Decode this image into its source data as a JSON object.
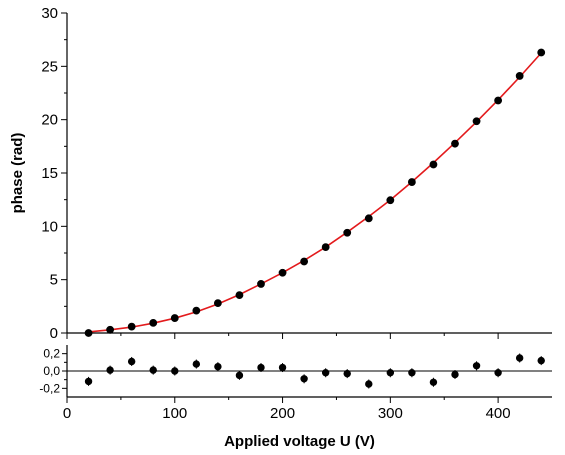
{
  "chart_data": [
    {
      "type": "scatter",
      "panel": "main",
      "title": "",
      "xlabel": "",
      "ylabel": "phase (rad)",
      "xlim": [
        0,
        450
      ],
      "ylim": [
        0,
        30
      ],
      "yticks": [
        0,
        5,
        10,
        15,
        20,
        25,
        30
      ],
      "ytick_labels": [
        "0",
        "5",
        "10",
        "15",
        "20",
        "25",
        "30"
      ],
      "series": [
        {
          "kind": "points",
          "color": "#000000",
          "x": [
            20,
            40,
            60,
            80,
            100,
            120,
            140,
            160,
            180,
            200,
            220,
            240,
            260,
            280,
            300,
            320,
            340,
            360,
            380,
            400,
            420,
            440
          ],
          "y": [
            0.0,
            0.3,
            0.6,
            0.95,
            1.4,
            2.1,
            2.8,
            3.55,
            4.6,
            5.65,
            6.7,
            8.05,
            9.4,
            10.75,
            12.45,
            14.15,
            15.8,
            17.75,
            19.85,
            21.8,
            24.1,
            26.3
          ]
        },
        {
          "kind": "fit",
          "color": "#e31a1c",
          "x": [
            20,
            40,
            60,
            80,
            100,
            120,
            140,
            160,
            180,
            200,
            220,
            240,
            260,
            280,
            300,
            320,
            340,
            360,
            380,
            400,
            420,
            440
          ],
          "y": [
            0.1,
            0.3,
            0.55,
            0.92,
            1.39,
            1.98,
            2.72,
            3.6,
            4.6,
            5.65,
            6.8,
            8.06,
            9.45,
            10.92,
            12.47,
            14.17,
            15.96,
            17.84,
            19.8,
            21.85,
            24.0,
            26.25
          ]
        }
      ]
    },
    {
      "type": "scatter",
      "panel": "residuals",
      "title": "",
      "xlabel": "Applied voltage U (V)",
      "ylabel": "",
      "xlim": [
        0,
        450
      ],
      "ylim": [
        -0.3,
        0.3
      ],
      "xticks": [
        0,
        100,
        200,
        300,
        400
      ],
      "xtick_labels": [
        "0",
        "100",
        "200",
        "300",
        "400"
      ],
      "yticks": [
        -0.2,
        0.0,
        0.2
      ],
      "ytick_labels": [
        "-0,2",
        "0,0",
        "0,2"
      ],
      "zero_line": true,
      "series": [
        {
          "kind": "points",
          "color": "#000000",
          "x": [
            20,
            40,
            60,
            80,
            100,
            120,
            140,
            160,
            180,
            200,
            220,
            240,
            260,
            280,
            300,
            320,
            340,
            360,
            380,
            400,
            420,
            440
          ],
          "y": [
            -0.12,
            0.01,
            0.11,
            0.01,
            0.0,
            0.08,
            0.05,
            -0.05,
            0.04,
            0.04,
            -0.09,
            -0.02,
            -0.03,
            -0.15,
            -0.02,
            -0.02,
            -0.13,
            -0.04,
            0.06,
            -0.02,
            0.15,
            0.12
          ]
        }
      ]
    }
  ]
}
